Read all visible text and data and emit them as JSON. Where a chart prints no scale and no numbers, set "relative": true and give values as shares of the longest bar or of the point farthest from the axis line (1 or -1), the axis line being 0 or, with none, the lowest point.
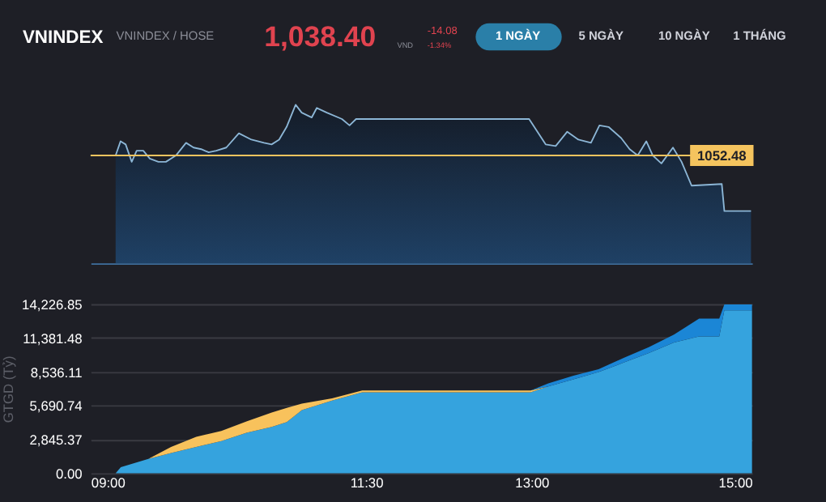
{
  "chart_data": [
    {
      "type": "other",
      "title": "VNINDEX",
      "subtitle": "VNINDEX / HOSE",
      "annotations": [
        "1,038.40",
        "VND",
        "-14.08",
        "-1.34%",
        "1 NGÀY",
        "5 NGÀY",
        "10 NGÀY",
        "1 THÁNG"
      ]
    },
    {
      "type": "area",
      "x": [
        9.227,
        9.272,
        9.318,
        9.373,
        9.418,
        9.478,
        9.537,
        9.615,
        9.683,
        9.774,
        9.866,
        9.934,
        10.003,
        10.071,
        10.14,
        10.231,
        10.345,
        10.459,
        10.573,
        10.642,
        10.71,
        10.778,
        10.86,
        10.915,
        11.006,
        11.052,
        11.143,
        11.28,
        11.349,
        11.408,
        11.486,
        12.978,
        13.128,
        13.219,
        13.324,
        13.425,
        13.539,
        13.616,
        13.699,
        13.813,
        13.89,
        13.963,
        14.041,
        14.1,
        14.178,
        14.283,
        14.361,
        14.452,
        14.726,
        14.749,
        14.991
      ],
      "series": [
        {
          "color": "#8cb6d6",
          "values": [
            0.68,
            0.77,
            0.75,
            0.64,
            0.71,
            0.71,
            0.66,
            0.64,
            0.64,
            0.68,
            0.76,
            0.73,
            0.72,
            0.7,
            0.71,
            0.73,
            0.82,
            0.78,
            0.76,
            0.75,
            0.78,
            0.86,
            1,
            0.95,
            0.92,
            0.98,
            0.95,
            0.91,
            0.87,
            0.91,
            0.91,
            0.91,
            0.75,
            0.74,
            0.83,
            0.78,
            0.76,
            0.87,
            0.86,
            0.79,
            0.72,
            0.68,
            0.77,
            0.68,
            0.63,
            0.73,
            0.64,
            0.49,
            0.5,
            0.33,
            0.33
          ]
        }
      ],
      "xlim": [
        9,
        15
      ],
      "relative": true,
      "ref_lines": [
        {
          "axis": "y",
          "value": 0.68,
          "color": "#f5c45e"
        }
      ],
      "annotations": [
        "1052.48"
      ]
    },
    {
      "type": "area",
      "stacked": true,
      "ylabel": "GTGD (Tỷ)",
      "x": [
        9.227,
        9.274,
        9.524,
        9.73,
        9.958,
        10.186,
        10.414,
        10.643,
        10.78,
        10.916,
        11.19,
        11.464,
        12.992,
        13.152,
        13.38,
        13.608,
        13.836,
        14.064,
        14.292,
        14.52,
        14.703,
        14.749,
        15.0
      ],
      "series": [
        {
          "color": "#35a3de",
          "values": [
            0,
            500,
            1200,
            1700,
            2200,
            2700,
            3400,
            3900,
            4300,
            5300,
            6100,
            6800,
            6800,
            7300,
            7900,
            8500,
            9300,
            10100,
            11000,
            11500,
            11500,
            13700,
            13700
          ]
        },
        {
          "color": "#f8c25c",
          "values": [
            null,
            null,
            0,
            500,
            850,
            850,
            950,
            1200,
            1200,
            550,
            200,
            150,
            150,
            0,
            null,
            null,
            null,
            null,
            null,
            null,
            null,
            null,
            null
          ]
        },
        {
          "color": "#1b86d6",
          "values": [
            null,
            null,
            null,
            null,
            null,
            null,
            null,
            null,
            null,
            null,
            null,
            null,
            0,
            250,
            300,
            250,
            400,
            500,
            650,
            1500,
            1500,
            500,
            500
          ]
        }
      ],
      "xlim": [
        9,
        15
      ],
      "xticks": [
        {
          "value": 9,
          "label": "09:00"
        },
        {
          "value": 11.5,
          "label": "11:30"
        },
        {
          "value": 13,
          "label": "13:00"
        },
        {
          "value": 15,
          "label": "15:00"
        }
      ],
      "ylim": [
        0,
        14226.85
      ],
      "yticks": [
        {
          "value": 0,
          "label": "0.00"
        },
        {
          "value": 2845.37,
          "label": "2,845.37"
        },
        {
          "value": 5690.74,
          "label": "5,690.74"
        },
        {
          "value": 8536.11,
          "label": "8,536.11"
        },
        {
          "value": 11381.48,
          "label": "11,381.48"
        },
        {
          "value": 14226.85,
          "label": "14,226.85"
        }
      ],
      "grid": "y"
    }
  ]
}
